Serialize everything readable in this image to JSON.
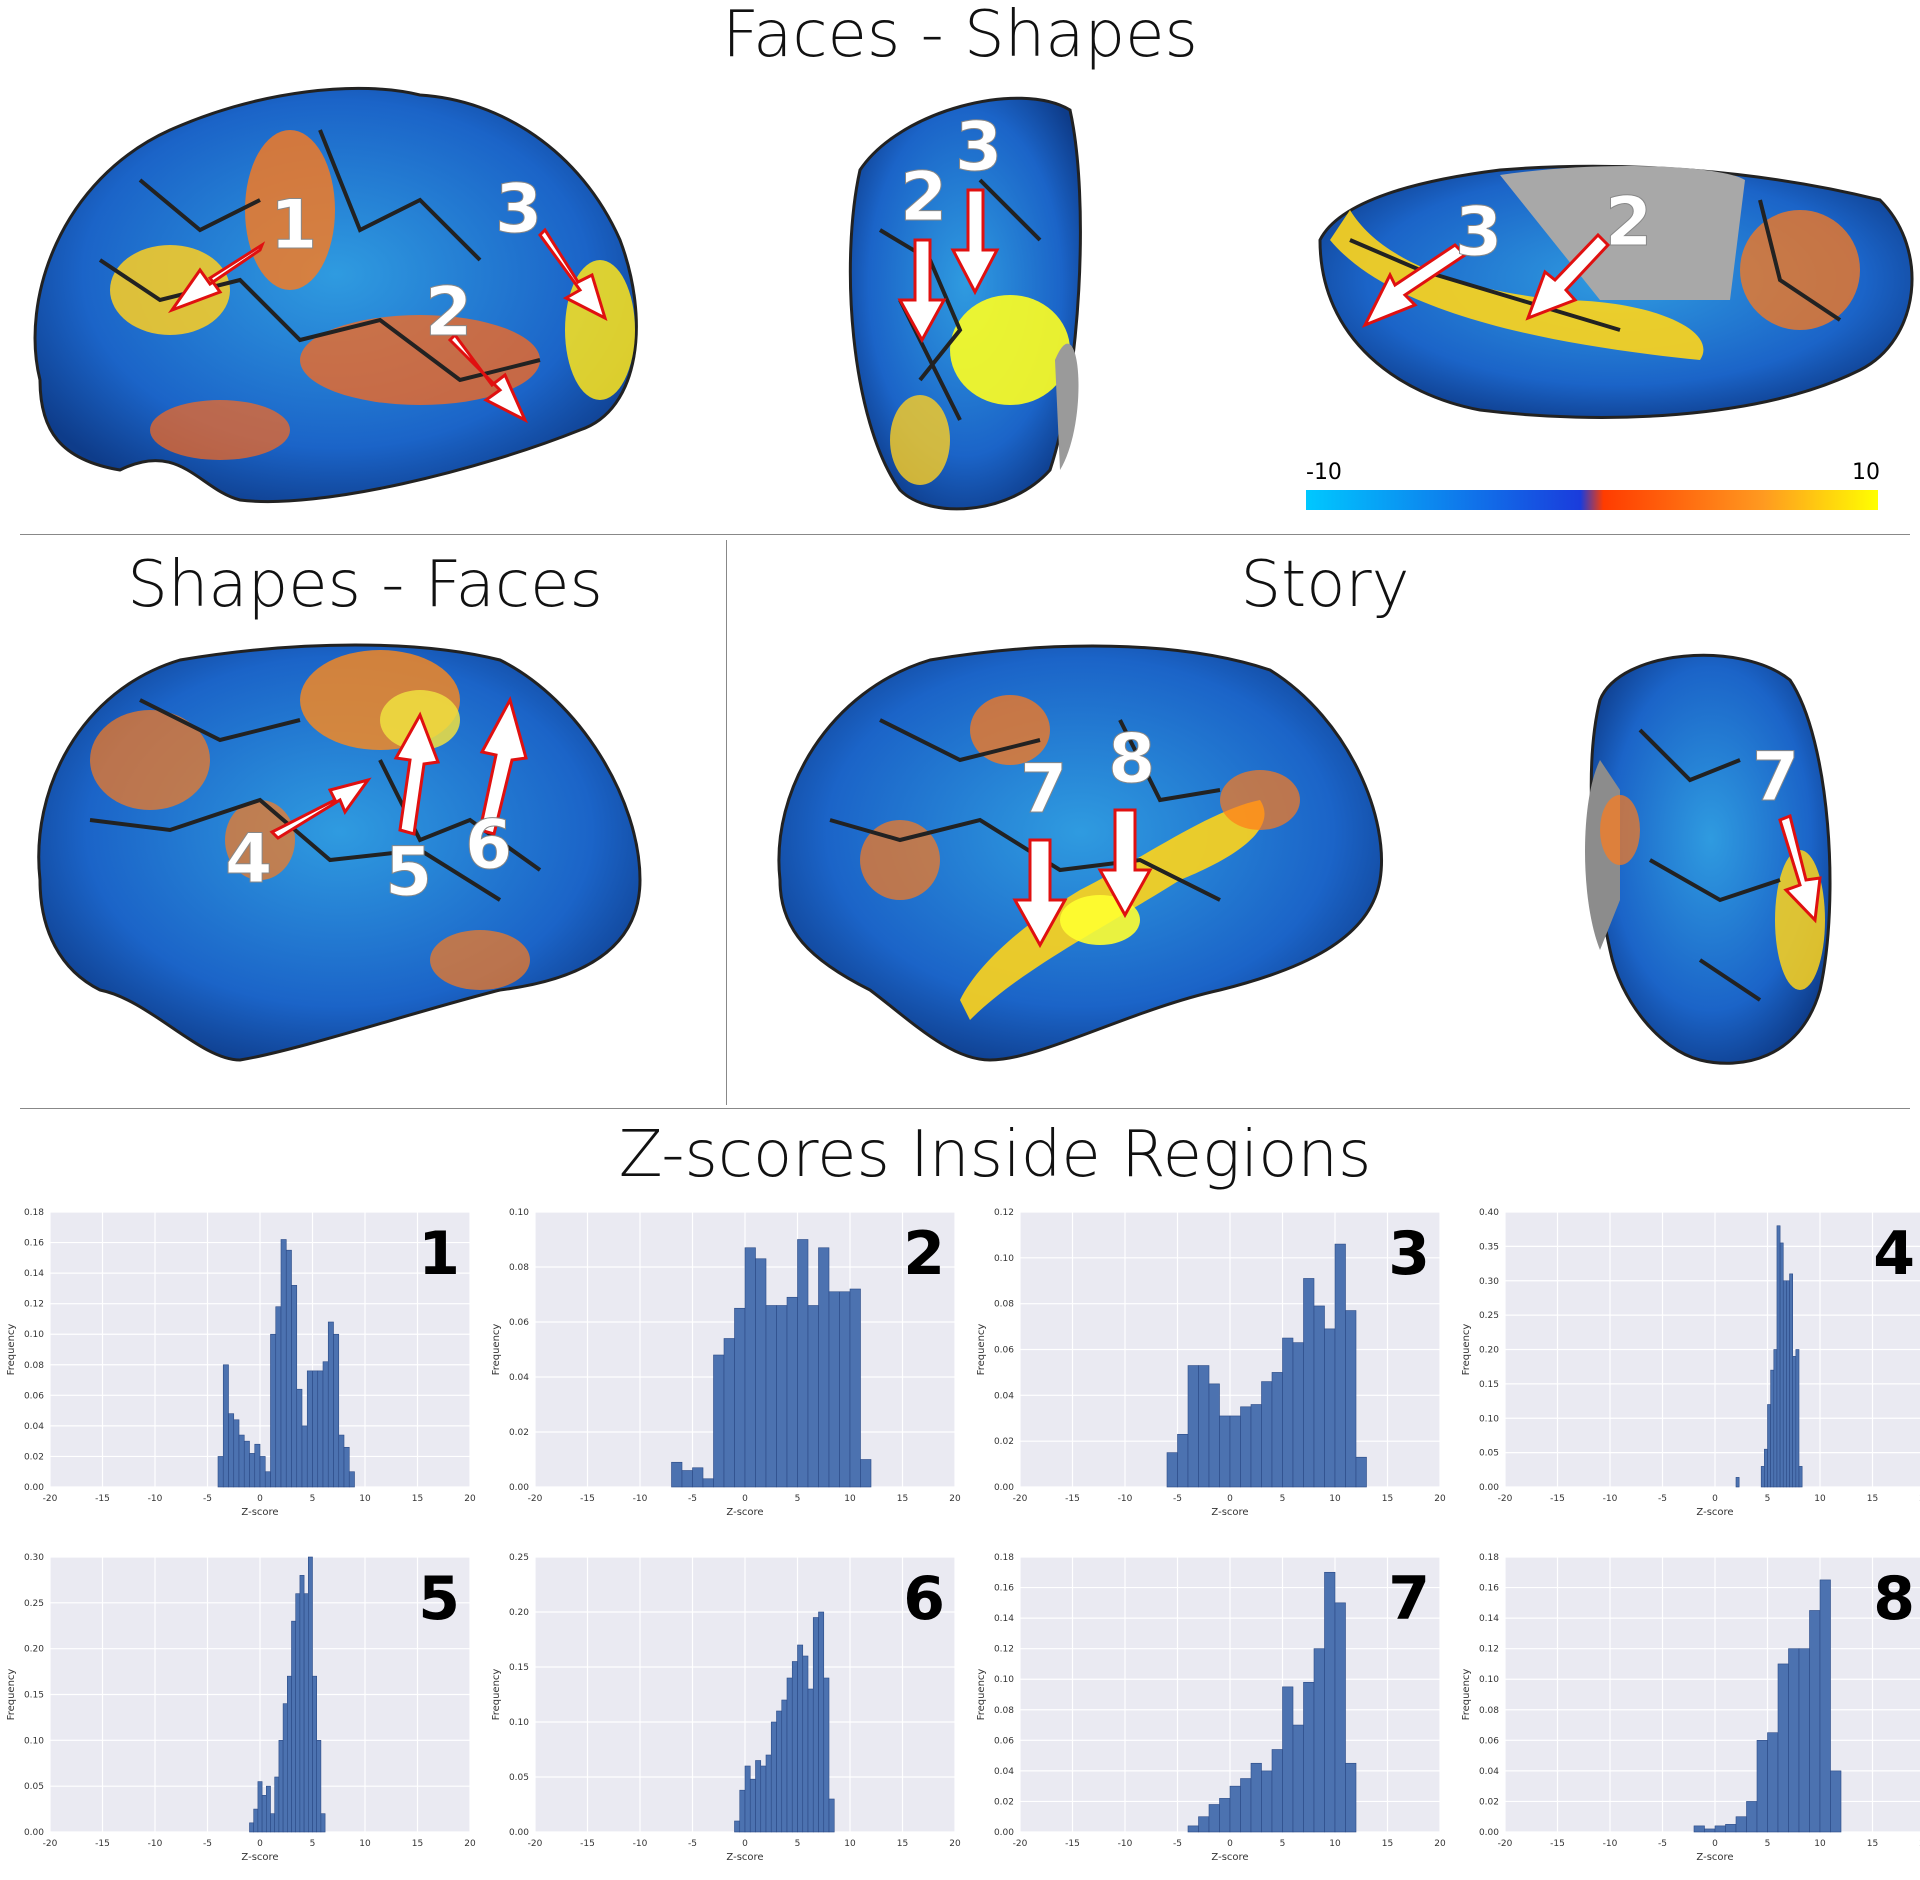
{
  "titles": {
    "faces_shapes": "Faces - Shapes",
    "shapes_faces": "Shapes - Faces",
    "story": "Story",
    "zscores": "Z-scores Inside Regions"
  },
  "colorbar": {
    "min_label": "-10",
    "max_label": "10",
    "colors": [
      "#00c8ff",
      "#1a3cdc",
      "#ff3c00",
      "#ff9a20",
      "#ffff00"
    ]
  },
  "brain_labels": {
    "fs_lateral": [
      "1",
      "2",
      "3"
    ],
    "fs_posterior": [
      "2",
      "3"
    ],
    "fs_ventral": [
      "3",
      "2"
    ],
    "sf_lateral": [
      "4",
      "5",
      "6"
    ],
    "story_lateral": [
      "7",
      "8"
    ],
    "story_posterior": [
      "7"
    ]
  },
  "chart_data": [
    {
      "type": "bar",
      "region": "1",
      "xlabel": "Z-score",
      "ylabel": "Frequency",
      "xlim": [
        -20,
        20
      ],
      "ylim": [
        0,
        0.18
      ],
      "yticks": [
        "0.00",
        "0.02",
        "0.04",
        "0.06",
        "0.08",
        "0.10",
        "0.12",
        "0.14",
        "0.16",
        "0.18"
      ],
      "x": [
        -4,
        -3.5,
        -3,
        -2.5,
        -2,
        -1.5,
        -1,
        -0.5,
        0,
        0.5,
        1,
        1.5,
        2,
        2.5,
        3,
        3.5,
        4,
        4.5,
        5,
        5.5,
        6,
        6.5,
        7,
        7.5,
        8,
        8.5
      ],
      "values": [
        0.02,
        0.08,
        0.048,
        0.044,
        0.034,
        0.03,
        0.022,
        0.028,
        0.02,
        0.01,
        0.1,
        0.118,
        0.162,
        0.155,
        0.132,
        0.064,
        0.04,
        0.076,
        0.076,
        0.076,
        0.082,
        0.108,
        0.1,
        0.034,
        0.026,
        0.01
      ]
    },
    {
      "type": "bar",
      "region": "2",
      "xlabel": "Z-score",
      "ylabel": "Frequency",
      "xlim": [
        -20,
        20
      ],
      "ylim": [
        0,
        0.1
      ],
      "yticks": [
        "0.00",
        "0.02",
        "0.04",
        "0.06",
        "0.08",
        "0.10"
      ],
      "x": [
        -7,
        -6,
        -5,
        -4,
        -3,
        -2,
        -1,
        0,
        1,
        2,
        3,
        4,
        5,
        6,
        7,
        8,
        9,
        10,
        11
      ],
      "values": [
        0.009,
        0.006,
        0.007,
        0.003,
        0.048,
        0.054,
        0.065,
        0.087,
        0.083,
        0.066,
        0.066,
        0.069,
        0.09,
        0.066,
        0.087,
        0.071,
        0.071,
        0.072,
        0.01
      ]
    },
    {
      "type": "bar",
      "region": "3",
      "xlabel": "Z-score",
      "ylabel": "Frequency",
      "xlim": [
        -20,
        20
      ],
      "ylim": [
        0,
        0.12
      ],
      "yticks": [
        "0.00",
        "0.02",
        "0.04",
        "0.06",
        "0.08",
        "0.10",
        "0.12"
      ],
      "x": [
        -6,
        -5,
        -4,
        -3,
        -2,
        -1,
        0,
        1,
        2,
        3,
        4,
        5,
        6,
        7,
        8,
        9,
        10,
        11,
        12
      ],
      "values": [
        0.015,
        0.023,
        0.053,
        0.053,
        0.045,
        0.031,
        0.031,
        0.035,
        0.036,
        0.046,
        0.05,
        0.065,
        0.063,
        0.091,
        0.079,
        0.069,
        0.106,
        0.077,
        0.013
      ]
    },
    {
      "type": "bar",
      "region": "4",
      "xlabel": "Z-score",
      "ylabel": "Frequency",
      "xlim": [
        -20,
        20
      ],
      "ylim": [
        0,
        0.4
      ],
      "yticks": [
        "0.00",
        "0.05",
        "0.10",
        "0.15",
        "0.20",
        "0.25",
        "0.30",
        "0.35",
        "0.40"
      ],
      "x": [
        2,
        4.4,
        4.7,
        5,
        5.3,
        5.6,
        5.9,
        6.2,
        6.5,
        6.8,
        7.1,
        7.4,
        7.7,
        8
      ],
      "values": [
        0.014,
        0.03,
        0.055,
        0.12,
        0.17,
        0.2,
        0.38,
        0.355,
        0.3,
        0.3,
        0.31,
        0.19,
        0.2,
        0.03
      ]
    },
    {
      "type": "bar",
      "region": "5",
      "xlabel": "Z-score",
      "ylabel": "Frequency",
      "xlim": [
        -20,
        20
      ],
      "ylim": [
        0,
        0.3
      ],
      "yticks": [
        "0.00",
        "0.05",
        "0.10",
        "0.15",
        "0.20",
        "0.25",
        "0.30"
      ],
      "x": [
        -1,
        -0.6,
        -0.2,
        0.2,
        0.6,
        1,
        1.4,
        1.8,
        2.2,
        2.6,
        3,
        3.4,
        3.8,
        4.2,
        4.6,
        5,
        5.4,
        5.8
      ],
      "values": [
        0.01,
        0.025,
        0.055,
        0.04,
        0.05,
        0.02,
        0.06,
        0.1,
        0.14,
        0.17,
        0.23,
        0.26,
        0.28,
        0.26,
        0.3,
        0.17,
        0.1,
        0.02
      ]
    },
    {
      "type": "bar",
      "region": "6",
      "xlabel": "Z-score",
      "ylabel": "Frequency",
      "xlim": [
        -20,
        20
      ],
      "ylim": [
        0,
        0.25
      ],
      "yticks": [
        "0.00",
        "0.05",
        "0.10",
        "0.15",
        "0.20",
        "0.25"
      ],
      "x": [
        -1,
        -0.5,
        0,
        0.5,
        1,
        1.5,
        2,
        2.5,
        3,
        3.5,
        4,
        4.5,
        5,
        5.5,
        6,
        6.5,
        7,
        7.5,
        8
      ],
      "values": [
        0.01,
        0.038,
        0.06,
        0.048,
        0.065,
        0.06,
        0.07,
        0.1,
        0.11,
        0.12,
        0.14,
        0.155,
        0.17,
        0.16,
        0.13,
        0.195,
        0.2,
        0.14,
        0.03
      ]
    },
    {
      "type": "bar",
      "region": "7",
      "xlabel": "Z-score",
      "ylabel": "Frequency",
      "xlim": [
        -20,
        20
      ],
      "ylim": [
        0,
        0.18
      ],
      "yticks": [
        "0.00",
        "0.02",
        "0.04",
        "0.06",
        "0.08",
        "0.10",
        "0.12",
        "0.14",
        "0.16",
        "0.18"
      ],
      "x": [
        -4,
        -3,
        -2,
        -1,
        0,
        1,
        2,
        3,
        4,
        5,
        6,
        7,
        8,
        9,
        10,
        11
      ],
      "values": [
        0.004,
        0.01,
        0.018,
        0.022,
        0.03,
        0.035,
        0.045,
        0.04,
        0.054,
        0.095,
        0.07,
        0.098,
        0.12,
        0.17,
        0.15,
        0.045
      ]
    },
    {
      "type": "bar",
      "region": "8",
      "xlabel": "Z-score",
      "ylabel": "Frequency",
      "xlim": [
        -20,
        20
      ],
      "ylim": [
        0,
        0.18
      ],
      "yticks": [
        "0.00",
        "0.02",
        "0.04",
        "0.06",
        "0.08",
        "0.10",
        "0.12",
        "0.14",
        "0.16",
        "0.18"
      ],
      "x": [
        -2,
        -1,
        0,
        1,
        2,
        3,
        4,
        5,
        6,
        7,
        8,
        9,
        10,
        11
      ],
      "values": [
        0.004,
        0.002,
        0.004,
        0.005,
        0.01,
        0.02,
        0.06,
        0.065,
        0.11,
        0.12,
        0.12,
        0.145,
        0.165,
        0.04
      ]
    }
  ]
}
